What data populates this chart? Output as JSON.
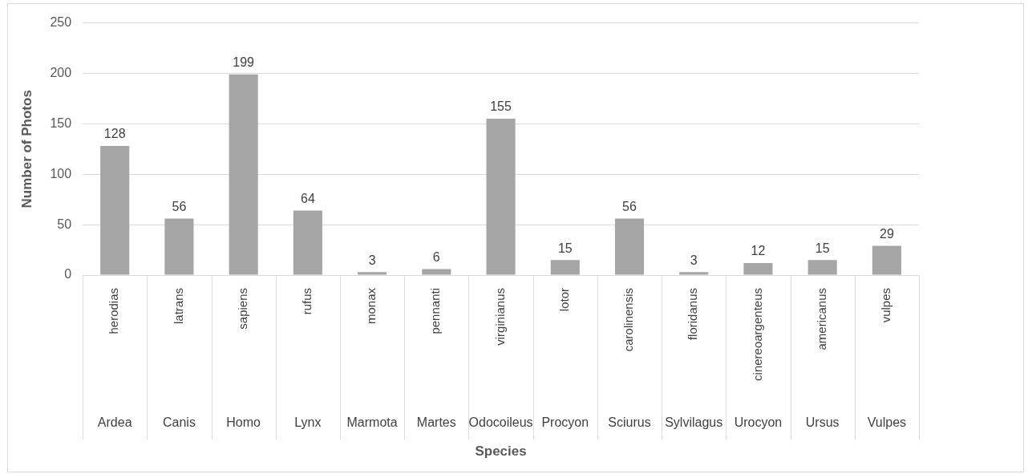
{
  "chart_data": {
    "type": "bar",
    "xlabel": "Species",
    "ylabel": "Number of Photos",
    "categories": [
      "herodias",
      "latrans",
      "sapiens",
      "rufus",
      "monax",
      "pennanti",
      "virginianus",
      "lotor",
      "carolinensis",
      "floridanus",
      "cinereoargenteus",
      "americanus",
      "vulpes"
    ],
    "values": [
      128,
      56,
      199,
      64,
      3,
      6,
      155,
      15,
      56,
      3,
      12,
      15,
      29
    ],
    "color": "#a5a5a5",
    "ylim": [
      0,
      250
    ],
    "yticks": [
      0,
      50,
      100,
      150,
      200,
      250
    ],
    "grid": "y",
    "data_labels": true,
    "annotations": [
      "Ardea",
      "Canis",
      "Homo",
      "Lynx",
      "Marmota",
      "Martes",
      "Odocoileus",
      "Procyon",
      "Sciurus",
      "Sylvilagus",
      "Urocyon",
      "Ursus",
      "Vulpes"
    ]
  }
}
